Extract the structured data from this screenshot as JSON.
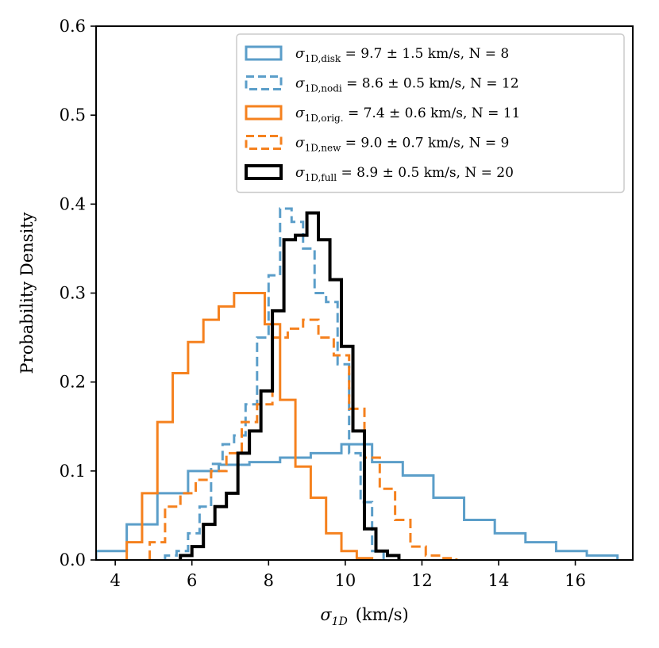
{
  "chart_data": {
    "type": "histogram",
    "title": "",
    "xlabel": "σ_1D (km/s)",
    "xlabel_main": "σ",
    "xlabel_sub": "1D",
    "xlabel_unit": "(km/s)",
    "ylabel": "Probability Density",
    "xlim": [
      3.5,
      17.5
    ],
    "ylim": [
      0.0,
      0.6
    ],
    "xticks": [
      4,
      6,
      8,
      10,
      12,
      14,
      16
    ],
    "xtick_labels": [
      "4",
      "6",
      "8",
      "10",
      "12",
      "14",
      "16"
    ],
    "yticks": [
      0.0,
      0.1,
      0.2,
      0.3,
      0.4,
      0.5,
      0.6
    ],
    "ytick_labels": [
      "0.0",
      "0.1",
      "0.2",
      "0.3",
      "0.4",
      "0.5",
      "0.6"
    ],
    "grid": false,
    "legend_position": "top-right",
    "series": [
      {
        "name": "σ_1D,disk = 9.7 ± 1.5 km/s, N = 8",
        "symbol": "σ",
        "subscript": "1D,disk",
        "rest": " = 9.7 ± 1.5 km/s, N = 8",
        "color": "#5b9ec9",
        "style": "solid",
        "width": 3,
        "edges": [
          3.5,
          4.3,
          5.1,
          5.9,
          6.7,
          7.5,
          8.3,
          9.1,
          9.9,
          10.7,
          11.5,
          12.3,
          13.1,
          13.9,
          14.7,
          15.5,
          16.3,
          17.1
        ],
        "values": [
          0.01,
          0.04,
          0.075,
          0.1,
          0.107,
          0.11,
          0.115,
          0.12,
          0.13,
          0.11,
          0.095,
          0.07,
          0.045,
          0.03,
          0.02,
          0.01,
          0.005
        ]
      },
      {
        "name": "σ_1D,nodi = 8.6 ± 0.5 km/s, N = 12",
        "symbol": "σ",
        "subscript": "1D,nodi",
        "rest": " = 8.6 ± 0.5 km/s, N = 12",
        "color": "#5b9ec9",
        "style": "dashed",
        "width": 3,
        "edges": [
          5.3,
          5.6,
          5.9,
          6.2,
          6.5,
          6.8,
          7.1,
          7.4,
          7.7,
          8.0,
          8.3,
          8.6,
          8.9,
          9.2,
          9.5,
          9.8,
          10.1,
          10.4,
          10.7,
          11.0
        ],
        "values": [
          0.005,
          0.01,
          0.03,
          0.06,
          0.108,
          0.13,
          0.14,
          0.175,
          0.25,
          0.32,
          0.395,
          0.38,
          0.35,
          0.3,
          0.29,
          0.22,
          0.12,
          0.065,
          0.01
        ]
      },
      {
        "name": "σ_1D,orig. = 7.4 ± 0.6 km/s, N = 11",
        "symbol": "σ",
        "subscript": "1D,orig.",
        "rest": " = 7.4 ± 0.6 km/s, N = 11",
        "color": "#f5811e",
        "style": "solid",
        "width": 3,
        "edges": [
          4.3,
          4.7,
          5.1,
          5.5,
          5.9,
          6.3,
          6.7,
          7.1,
          7.5,
          7.9,
          8.3,
          8.7,
          9.1,
          9.5,
          9.9,
          10.3,
          10.7
        ],
        "values": [
          0.02,
          0.075,
          0.155,
          0.21,
          0.245,
          0.27,
          0.285,
          0.3,
          0.3,
          0.265,
          0.18,
          0.105,
          0.07,
          0.03,
          0.01,
          0.002
        ]
      },
      {
        "name": "σ_1D,new = 9.0 ± 0.7 km/s, N = 9",
        "symbol": "σ",
        "subscript": "1D,new",
        "rest": " = 9.0 ± 0.7 km/s, N = 9",
        "color": "#f5811e",
        "style": "dashed",
        "width": 3,
        "edges": [
          4.9,
          5.3,
          5.7,
          6.1,
          6.5,
          6.9,
          7.3,
          7.7,
          8.1,
          8.5,
          8.9,
          9.3,
          9.7,
          10.1,
          10.5,
          10.9,
          11.3,
          11.7,
          12.1,
          12.5,
          12.9
        ],
        "values": [
          0.02,
          0.06,
          0.075,
          0.09,
          0.1,
          0.12,
          0.155,
          0.175,
          0.25,
          0.26,
          0.27,
          0.25,
          0.23,
          0.17,
          0.115,
          0.08,
          0.045,
          0.015,
          0.005,
          0.002
        ]
      },
      {
        "name": "σ_1D,full = 8.9 ± 0.5 km/s, N = 20",
        "symbol": "σ",
        "subscript": "1D,full",
        "rest": " = 8.9 ± 0.5 km/s, N = 20",
        "color": "#000000",
        "style": "solid",
        "width": 4,
        "edges": [
          5.7,
          6.0,
          6.3,
          6.6,
          6.9,
          7.2,
          7.5,
          7.8,
          8.1,
          8.4,
          8.7,
          9.0,
          9.3,
          9.6,
          9.9,
          10.2,
          10.5,
          10.8,
          11.1,
          11.4
        ],
        "values": [
          0.005,
          0.015,
          0.04,
          0.06,
          0.075,
          0.12,
          0.145,
          0.19,
          0.28,
          0.36,
          0.365,
          0.39,
          0.36,
          0.315,
          0.24,
          0.145,
          0.035,
          0.01,
          0.005
        ]
      }
    ]
  }
}
